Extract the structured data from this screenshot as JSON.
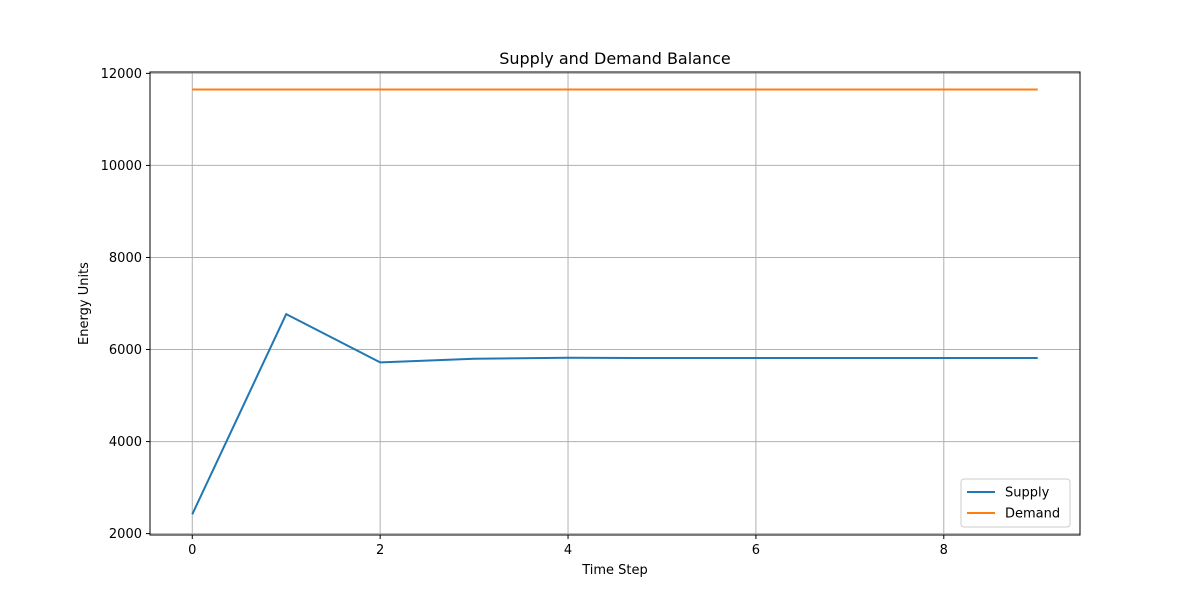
{
  "chart_data": {
    "type": "line",
    "title": "Supply and Demand Balance",
    "xlabel": "Time Step",
    "ylabel": "Energy Units",
    "x": [
      0,
      1,
      2,
      3,
      4,
      5,
      6,
      7,
      8,
      9
    ],
    "xlim": [
      -0.45,
      9.45
    ],
    "ylim": [
      1970,
      12030
    ],
    "xticks": [
      0,
      2,
      4,
      6,
      8
    ],
    "yticks": [
      2000,
      4000,
      6000,
      8000,
      10000,
      12000
    ],
    "grid": true,
    "legend_position": "lower-right",
    "series": [
      {
        "name": "Supply",
        "color": "#1f77b4",
        "values": [
          2420,
          6770,
          5720,
          5800,
          5820,
          5815,
          5815,
          5815,
          5815,
          5815
        ]
      },
      {
        "name": "Demand",
        "color": "#ff7f0e",
        "values": [
          11650,
          11650,
          11650,
          11650,
          11650,
          11650,
          11650,
          11650,
          11650,
          11650
        ]
      }
    ]
  }
}
